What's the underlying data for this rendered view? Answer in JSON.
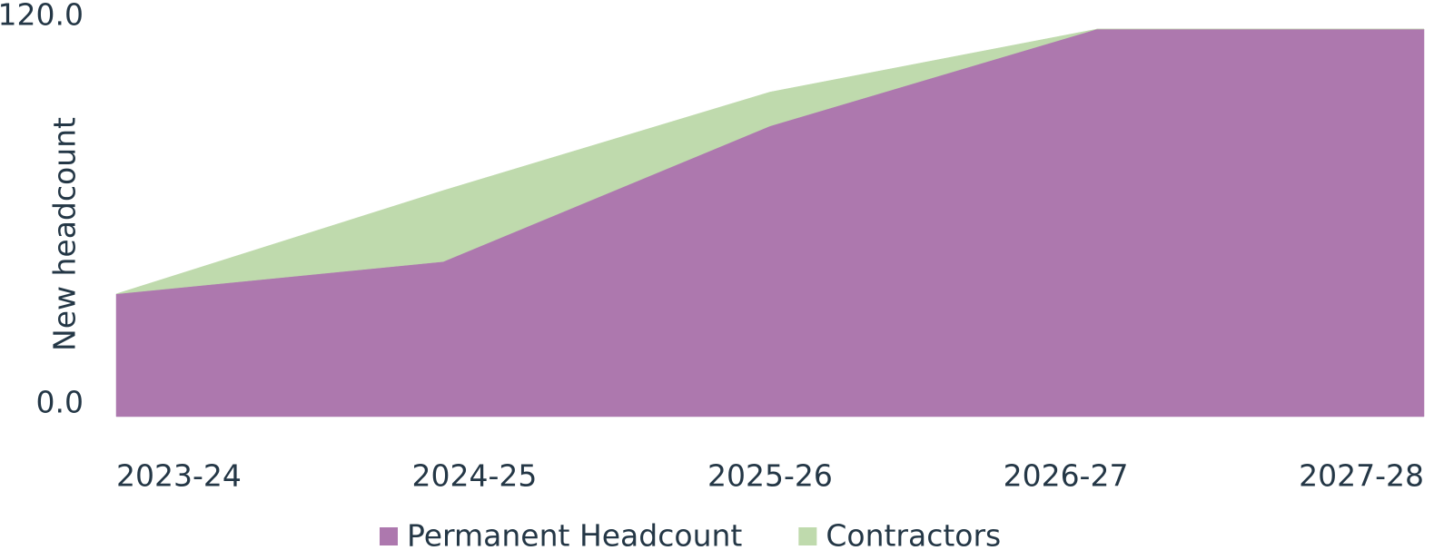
{
  "chart_data": {
    "type": "stacked-area",
    "y_label": "New headcount",
    "categories": [
      "2023-24",
      "2024-25",
      "2025-26",
      "2026-27",
      "2027-28"
    ],
    "series": [
      {
        "name": "Permanent Headcount",
        "color": "#ad78ae",
        "values": [
          38,
          48,
          90,
          120,
          120
        ]
      },
      {
        "name": "Contractors",
        "color": "#bfdaad",
        "values": [
          0,
          22,
          10.5,
          0,
          0
        ]
      }
    ],
    "ylim": [
      0,
      120
    ],
    "yticks": [
      {
        "value": 0,
        "label": "0.0"
      },
      {
        "value": 120,
        "label": "120.0"
      }
    ]
  }
}
